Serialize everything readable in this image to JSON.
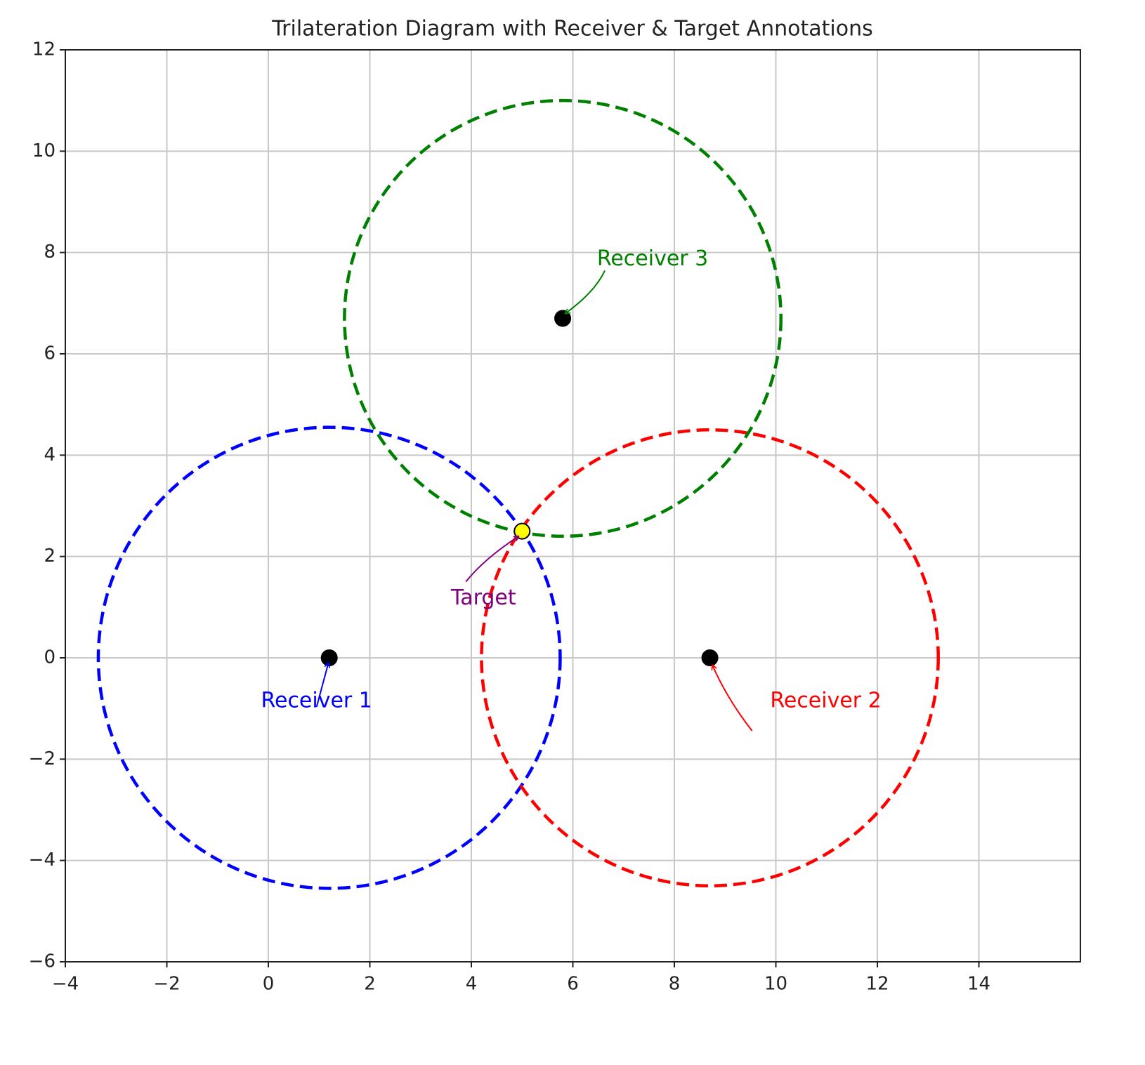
{
  "chart_data": {
    "type": "scatter",
    "title": "Trilateration Diagram with Receiver & Target Annotations",
    "series": [
      {
        "name": "Receiver 1",
        "color": "blue",
        "marker_color": "black",
        "x": [
          1.2
        ],
        "y": [
          0
        ],
        "radius": [
          4.55
        ]
      },
      {
        "name": "Receiver 2",
        "color": "red",
        "marker_color": "black",
        "x": [
          8.7
        ],
        "y": [
          0
        ],
        "radius": [
          4.5
        ]
      },
      {
        "name": "Receiver 3",
        "color": "green",
        "marker_color": "black",
        "x": [
          5.8
        ],
        "y": [
          6.7
        ],
        "radius": [
          4.3
        ]
      },
      {
        "name": "Target",
        "color": "purple",
        "marker_color": "yellow",
        "x": [
          5.0
        ],
        "y": [
          2.5
        ]
      }
    ],
    "xlim": [
      -4,
      16
    ],
    "ylim": [
      -6,
      12
    ],
    "xticks": [
      {
        "value": -4,
        "label": "−4"
      },
      {
        "value": -2,
        "label": "−2"
      },
      0,
      2,
      4,
      6,
      8,
      10,
      12,
      14
    ],
    "yticks": [
      {
        "value": -6,
        "label": "−6"
      },
      {
        "value": -4,
        "label": "−4"
      },
      {
        "value": -2,
        "label": "−2"
      },
      0,
      2,
      4,
      6,
      8,
      10,
      12
    ],
    "grid": true
  }
}
